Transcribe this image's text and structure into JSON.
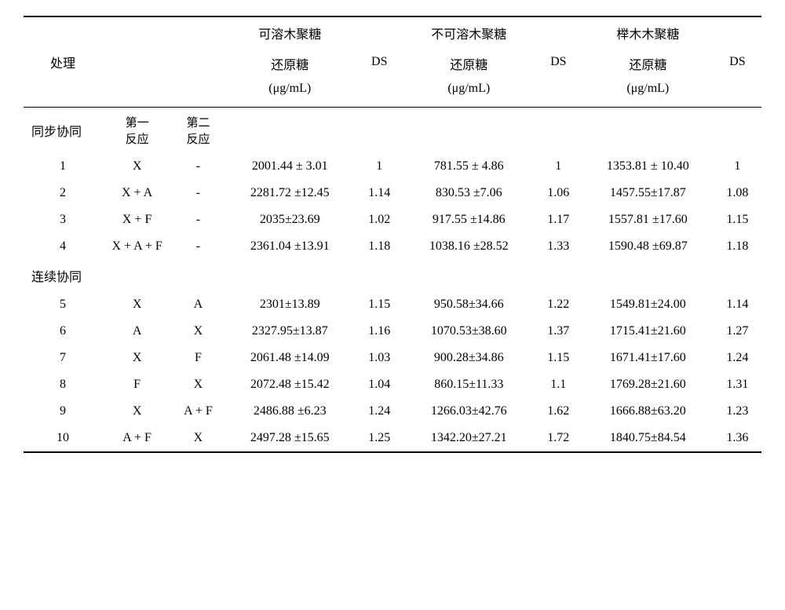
{
  "headers": {
    "treatment": "处理",
    "group1_title": "可溶木聚糖",
    "group2_title": "不可溶木聚糖",
    "group3_title": "榉木木聚糖",
    "value_label_line1": "还原糖",
    "value_label_line2": "(μg/mL)",
    "ds": "DS",
    "rx1_line1": "第一",
    "rx1_line2": "反应",
    "rx2_line1": "第二",
    "rx2_line2": "反应"
  },
  "sections": {
    "sync": "同步协同",
    "seq": "连续协同"
  },
  "rows_sync": [
    {
      "n": "1",
      "rx1": "X",
      "rx2": "-",
      "v1": "2001.44 ± 3.01",
      "d1": "1",
      "v2": "781.55 ± 4.86",
      "d2": "1",
      "v3": "1353.81 ± 10.40",
      "d3": "1"
    },
    {
      "n": "2",
      "rx1": "X + A",
      "rx2": "-",
      "v1": "2281.72 ±12.45",
      "d1": "1.14",
      "v2": "830.53 ±7.06",
      "d2": "1.06",
      "v3": "1457.55±17.87",
      "d3": "1.08"
    },
    {
      "n": "3",
      "rx1": "X + F",
      "rx2": "-",
      "v1": "2035±23.69",
      "d1": "1.02",
      "v2": "917.55 ±14.86",
      "d2": "1.17",
      "v3": "1557.81 ±17.60",
      "d3": "1.15"
    },
    {
      "n": "4",
      "rx1": "X + A + F",
      "rx2": "-",
      "v1": "2361.04 ±13.91",
      "d1": "1.18",
      "v2": "1038.16 ±28.52",
      "d2": "1.33",
      "v3": "1590.48 ±69.87",
      "d3": "1.18"
    }
  ],
  "rows_seq": [
    {
      "n": "5",
      "rx1": "X",
      "rx2": "A",
      "v1": "2301±13.89",
      "d1": "1.15",
      "v2": "950.58±34.66",
      "d2": "1.22",
      "v3": "1549.81±24.00",
      "d3": "1.14"
    },
    {
      "n": "6",
      "rx1": "A",
      "rx2": "X",
      "v1": "2327.95±13.87",
      "d1": "1.16",
      "v2": "1070.53±38.60",
      "d2": "1.37",
      "v3": "1715.41±21.60",
      "d3": "1.27"
    },
    {
      "n": "7",
      "rx1": "X",
      "rx2": "F",
      "v1": "2061.48 ±14.09",
      "d1": "1.03",
      "v2": "900.28±34.86",
      "d2": "1.15",
      "v3": "1671.41±17.60",
      "d3": "1.24"
    },
    {
      "n": "8",
      "rx1": "F",
      "rx2": "X",
      "v1": "2072.48 ±15.42",
      "d1": "1.04",
      "v2": "860.15±11.33",
      "d2": "1.1",
      "v3": "1769.28±21.60",
      "d3": "1.31"
    },
    {
      "n": "9",
      "rx1": "X",
      "rx2": "A + F",
      "v1": "2486.88 ±6.23",
      "d1": "1.24",
      "v2": "1266.03±42.76",
      "d2": "1.62",
      "v3": "1666.88±63.20",
      "d3": "1.23"
    },
    {
      "n": "10",
      "rx1": "A + F",
      "rx2": "X",
      "v1": "2497.28 ±15.65",
      "d1": "1.25",
      "v2": "1342.20±27.21",
      "d2": "1.72",
      "v3": "1840.75±84.54",
      "d3": "1.36"
    }
  ]
}
